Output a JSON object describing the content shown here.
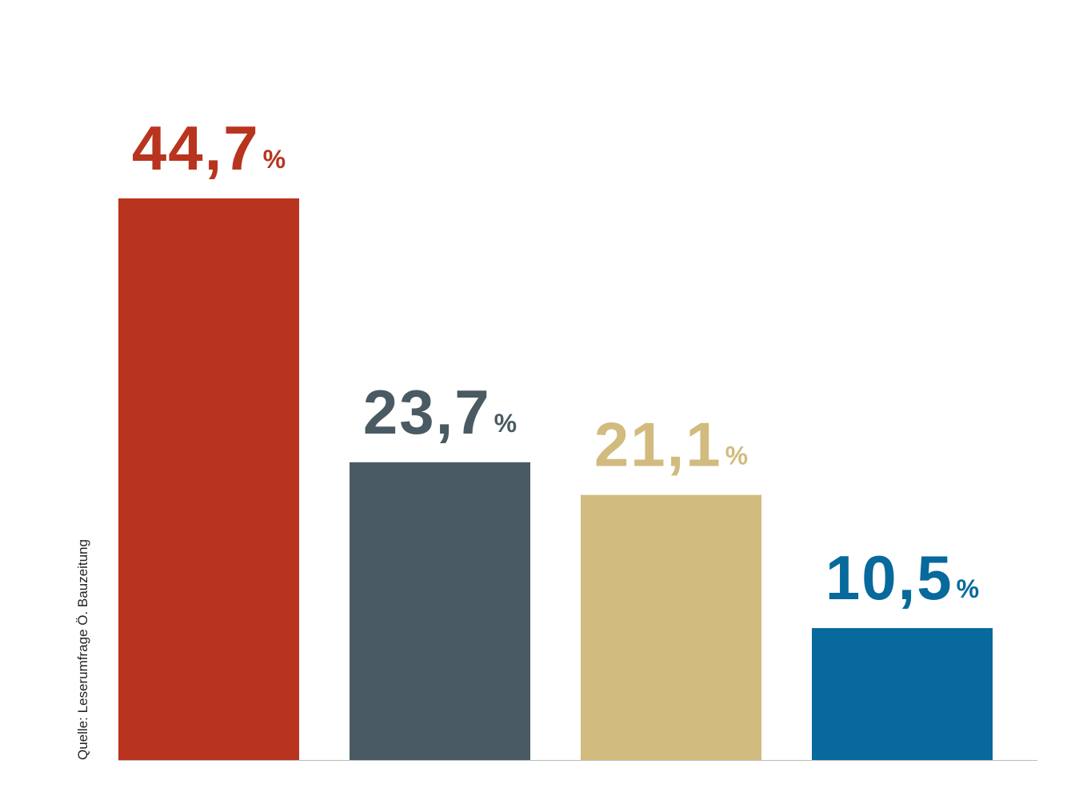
{
  "chart_data": {
    "type": "bar",
    "source": "Quelle: Leserumfrage Ö. Bauzeitung",
    "categories": [
      null,
      null,
      null,
      null
    ],
    "values": [
      44.7,
      23.7,
      21.1,
      10.5
    ],
    "value_labels": [
      "44,7",
      "23,7",
      "21,1",
      "10,5"
    ],
    "unit": "%",
    "colors": [
      "#b9341e",
      "#4a5a62",
      "#d2bb7f",
      "#07699c"
    ]
  }
}
